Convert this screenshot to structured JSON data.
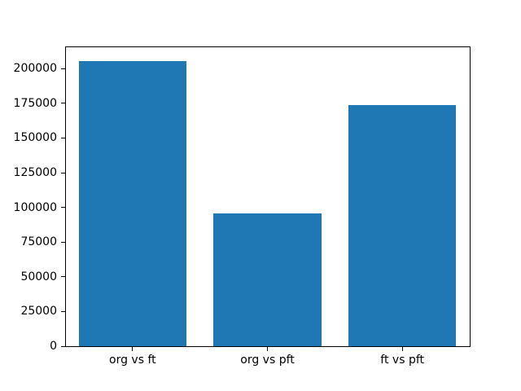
{
  "chart_data": {
    "type": "bar",
    "categories": [
      "org vs ft",
      "org vs pft",
      "ft vs pft"
    ],
    "values": [
      205500,
      95500,
      173500
    ],
    "title": "",
    "xlabel": "",
    "ylabel": "",
    "yticks": [
      0,
      25000,
      50000,
      75000,
      100000,
      125000,
      150000,
      175000,
      200000
    ],
    "ytick_labels": [
      "0",
      "25000",
      "50000",
      "75000",
      "100000",
      "125000",
      "150000",
      "175000",
      "200000"
    ],
    "ylim": [
      0,
      216000
    ],
    "bar_color": "#1f77b4",
    "axis_color": "#000000",
    "background_color": "#ffffff",
    "bar_width_frac": 0.8,
    "grid": false,
    "legend": null
  }
}
